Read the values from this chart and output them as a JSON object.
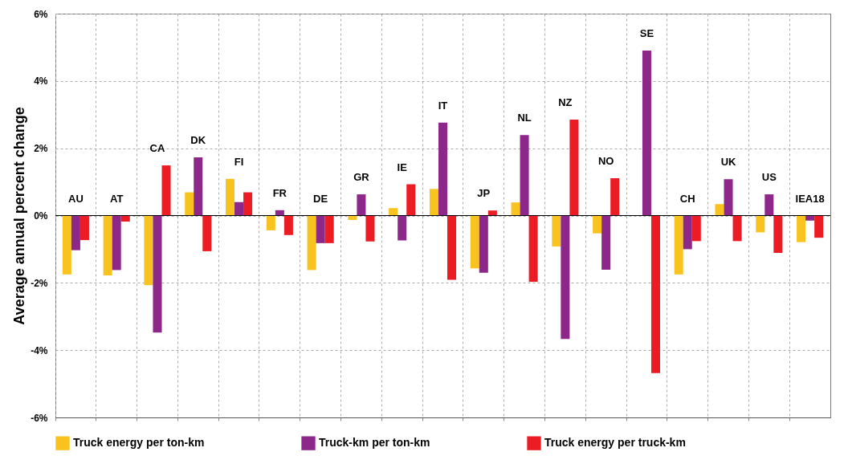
{
  "chart_data": {
    "type": "bar",
    "ylabel": "Average annual percent change",
    "categories": [
      "AU",
      "AT",
      "CA",
      "DK",
      "FI",
      "FR",
      "DE",
      "GR",
      "IE",
      "IT",
      "JP",
      "NL",
      "NZ",
      "NO",
      "SE",
      "CH",
      "UK",
      "US",
      "IEA18"
    ],
    "series": [
      {
        "name": "Truck energy per ton-km",
        "color": "#f9c31f",
        "values": [
          -1.75,
          -1.78,
          -2.07,
          0.69,
          1.09,
          -0.44,
          -1.62,
          -0.13,
          0.22,
          0.79,
          -1.57,
          0.39,
          -0.92,
          -0.53,
          0,
          -1.75,
          0.34,
          -0.5,
          -0.79
        ]
      },
      {
        "name": "Truck-km per ton-km",
        "color": "#8e278a",
        "values": [
          -1.03,
          -1.62,
          -3.48,
          1.73,
          0.4,
          0.16,
          -0.82,
          0.63,
          -0.74,
          2.76,
          -1.7,
          2.39,
          -3.67,
          -1.61,
          4.9,
          -1,
          1.08,
          0.63,
          -0.15
        ]
      },
      {
        "name": "Truck energy per truck-km",
        "color": "#ec1c24",
        "values": [
          -0.73,
          -0.18,
          1.49,
          -1.06,
          0.69,
          -0.58,
          -0.82,
          -0.77,
          0.93,
          -1.91,
          0.15,
          -1.97,
          2.85,
          1.11,
          -4.68,
          -0.76,
          -0.76,
          -1.11,
          -0.66
        ]
      }
    ],
    "ylim": [
      -6,
      6
    ],
    "yticks": [
      {
        "value": -6,
        "label": "-6%"
      },
      {
        "value": -4,
        "label": "-4%"
      },
      {
        "value": -2,
        "label": "-2%"
      },
      {
        "value": 0,
        "label": "0%"
      },
      {
        "value": 2,
        "label": "2%"
      },
      {
        "value": 4,
        "label": "4%"
      },
      {
        "value": 6,
        "label": "6%"
      }
    ],
    "grid": true,
    "legend": "bottom",
    "tick_labels": "y"
  }
}
